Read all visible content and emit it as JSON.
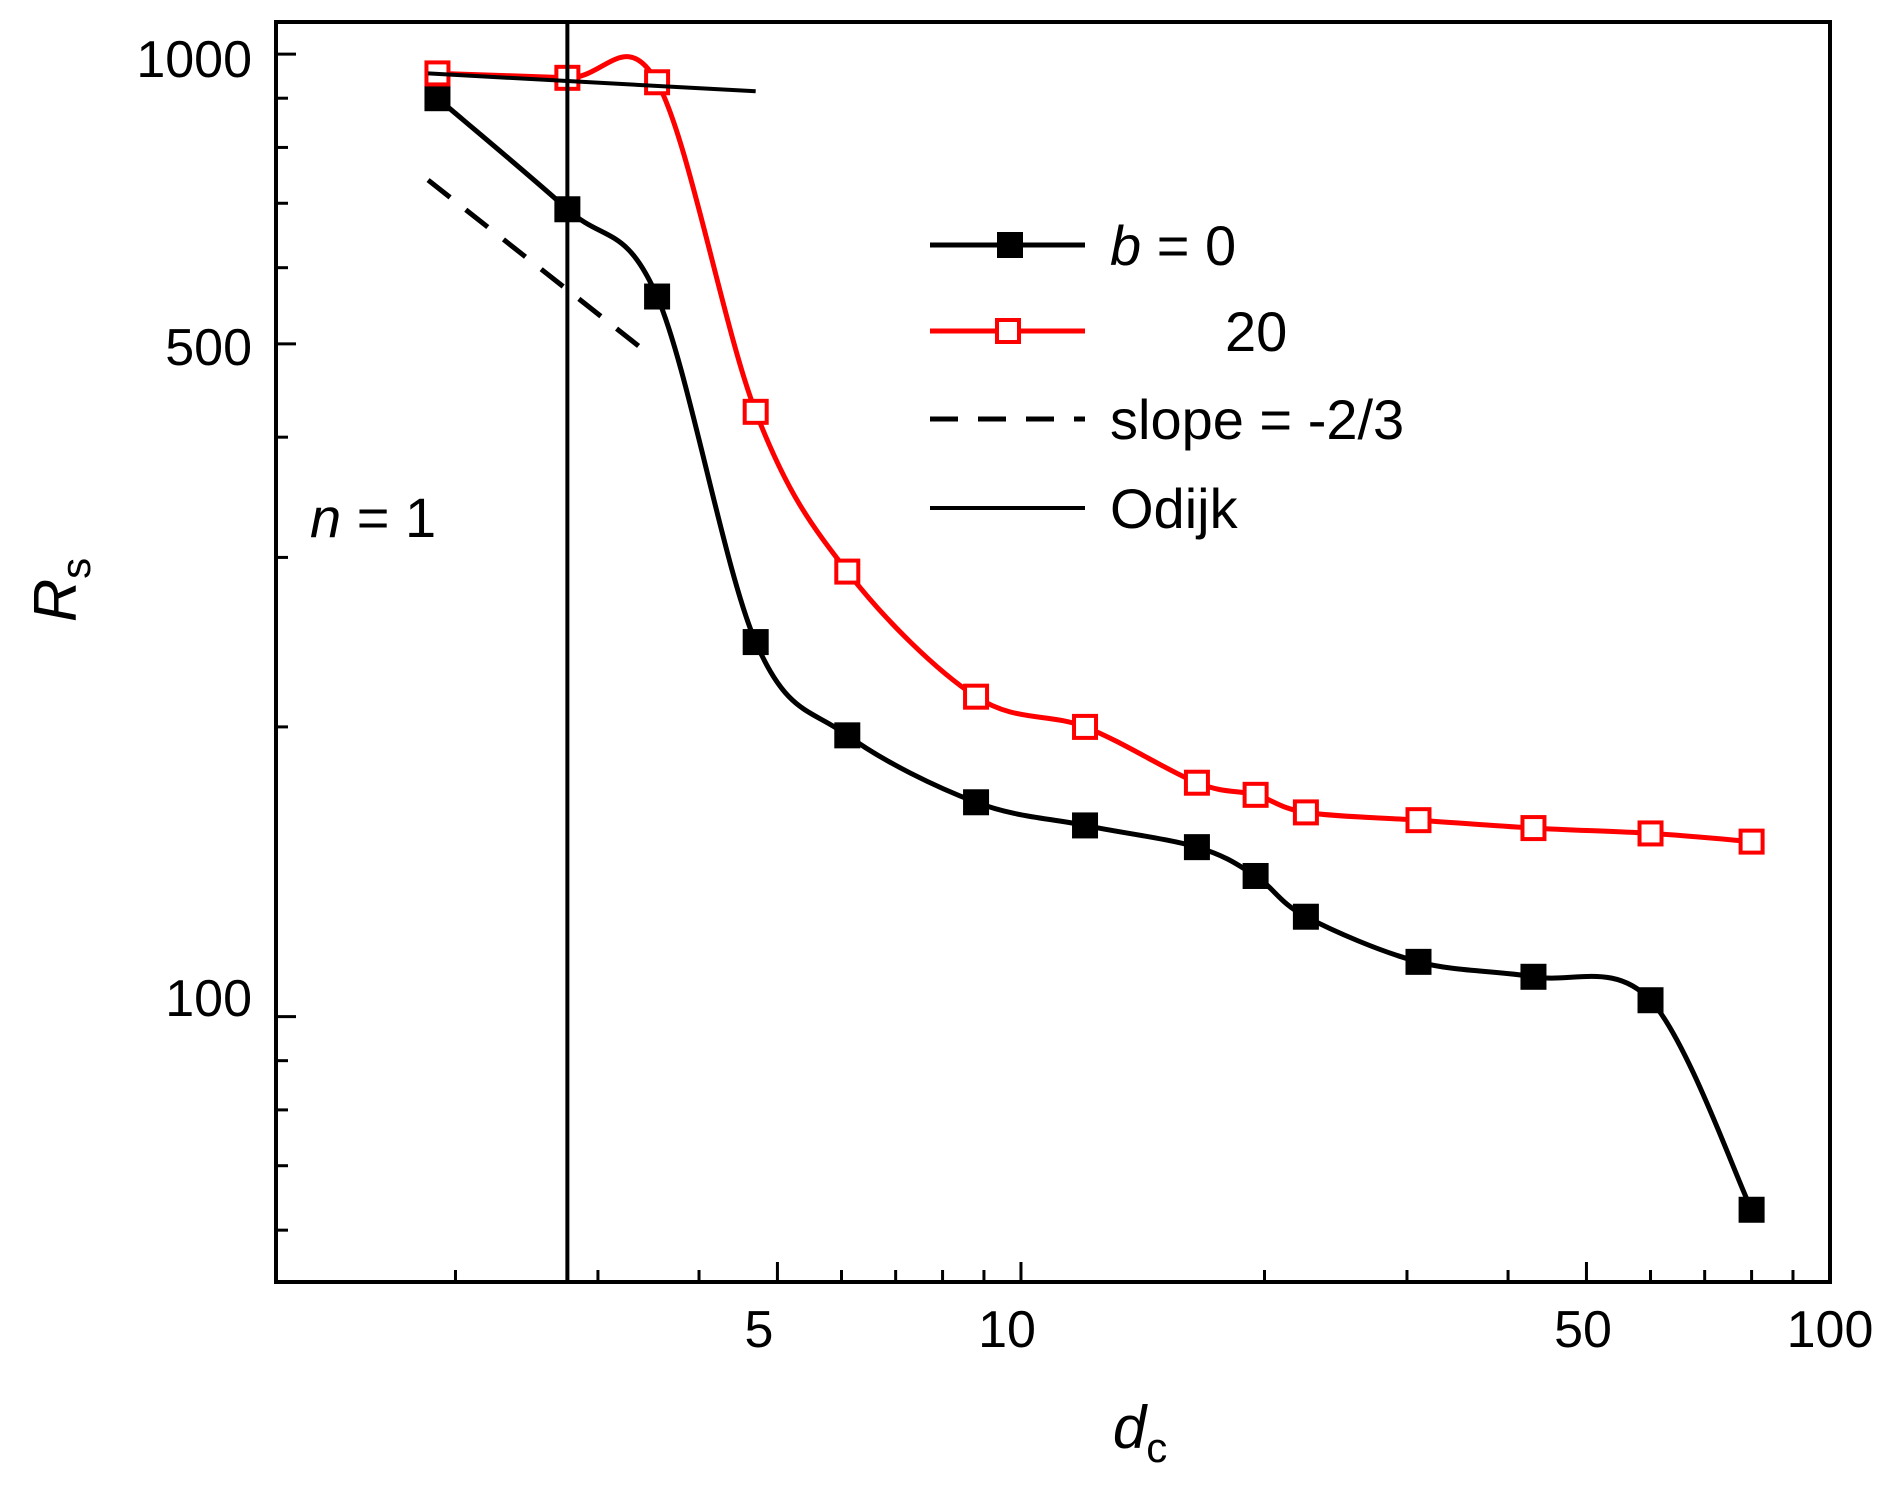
{
  "chart_data": {
    "type": "line",
    "scale": {
      "x": "log",
      "y": "log"
    },
    "xlim": [
      1.2,
      100
    ],
    "ylim": [
      53,
      1080
    ],
    "xlabel": {
      "main": "d",
      "sub": "c"
    },
    "ylabel": {
      "main": "R",
      "sub": "s"
    },
    "x_ticks": [
      5,
      10,
      50,
      100
    ],
    "x_tick_labels": [
      "5",
      "10",
      "50",
      "100"
    ],
    "y_ticks": [
      100,
      500,
      1000
    ],
    "y_tick_labels": [
      "100",
      "500",
      "1000"
    ],
    "annotation": {
      "italic": "n",
      "rest": " = 1",
      "vline_x": 2.75
    },
    "series": [
      {
        "name": "b = 0",
        "color": "#000000",
        "marker": "filled-square",
        "x": [
          1.9,
          2.75,
          3.55,
          4.7,
          6.1,
          8.8,
          12,
          16.5,
          19.5,
          22.5,
          31,
          43,
          60,
          80
        ],
        "y": [
          900,
          690,
          560,
          245,
          196,
          167,
          158,
          150,
          140,
          127,
          114,
          110,
          104,
          63
        ]
      },
      {
        "name": "20",
        "color": "#ff0000",
        "marker": "open-square",
        "x": [
          1.9,
          2.75,
          3.55,
          4.7,
          6.1,
          8.8,
          12,
          16.5,
          19.5,
          22.5,
          31,
          43,
          60,
          80
        ],
        "y": [
          955,
          945,
          935,
          425,
          290,
          215,
          200,
          175,
          170,
          163,
          160,
          157,
          155,
          152
        ]
      },
      {
        "name": "slope = -2/3",
        "color": "#000000",
        "style": "dashed",
        "x": [
          1.85,
          3.5
        ],
        "y": [
          740,
          485
        ]
      },
      {
        "name": "Odijk",
        "color": "#000000",
        "style": "solid",
        "x": [
          1.85,
          4.7
        ],
        "y": [
          955,
          915
        ]
      }
    ],
    "legend": {
      "position": "upper-right",
      "entries": [
        {
          "italic": "b",
          "text": " = 0"
        },
        {
          "italic": "",
          "text": "20"
        },
        {
          "italic": "",
          "text": "slope = -2/3"
        },
        {
          "italic": "",
          "text": "Odijk"
        }
      ]
    }
  }
}
